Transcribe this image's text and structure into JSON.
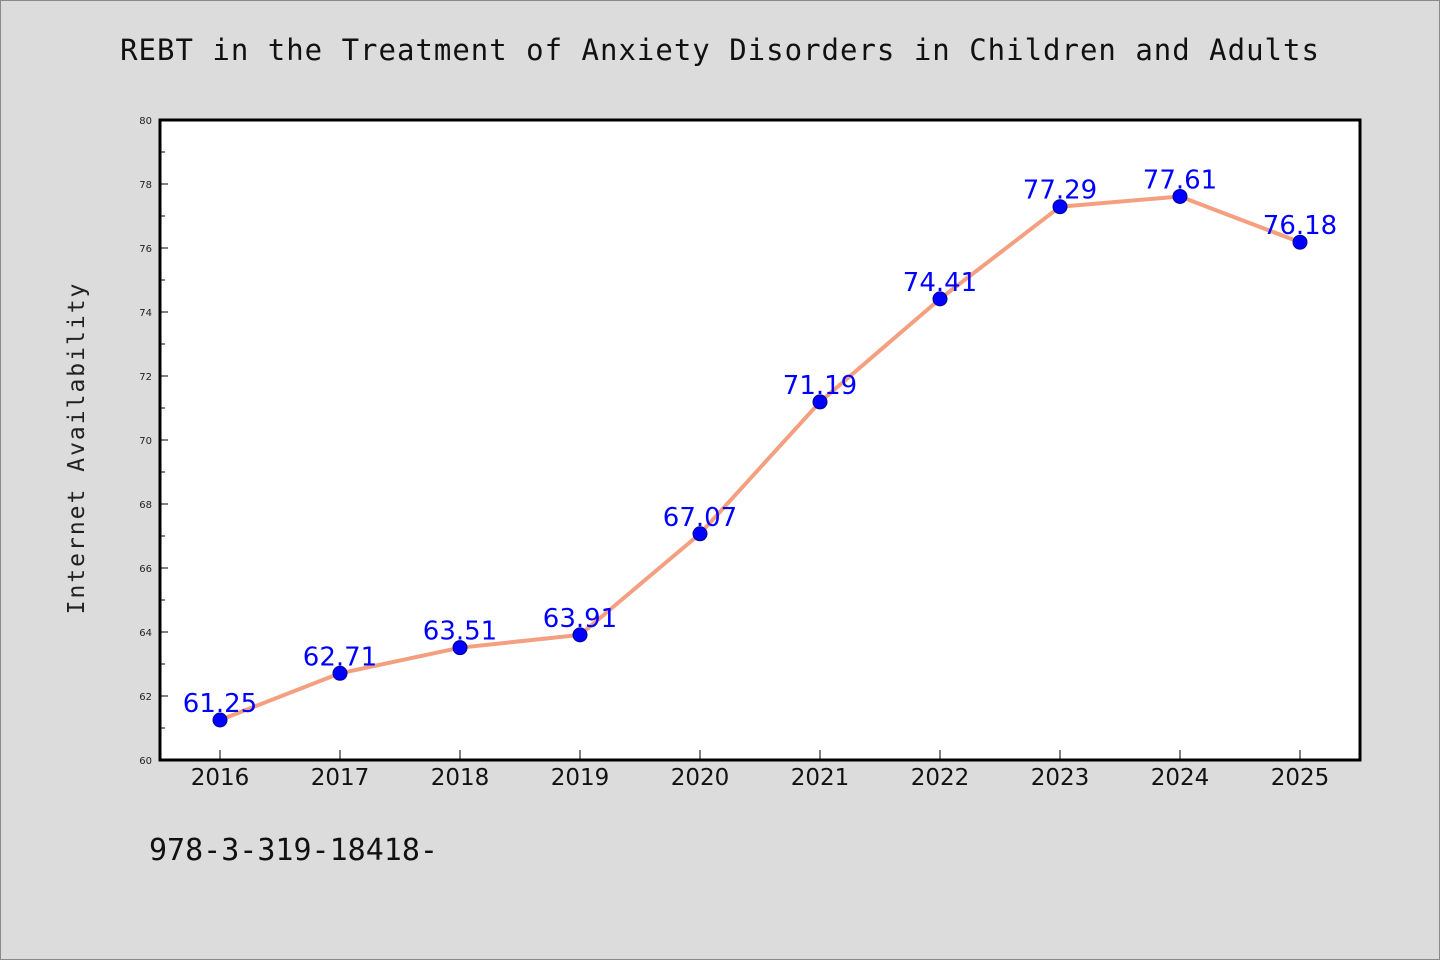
{
  "page": {
    "title": "REBT in the Treatment of Anxiety Disorders in Children and Adults",
    "footer_code": "978-3-319-18418-"
  },
  "colors": {
    "background": "#dcdcdc",
    "plot_background": "#ffffff",
    "line": "#f4a080",
    "marker": "#0000ff",
    "label": "#0000ff"
  },
  "chart_data": {
    "type": "line",
    "title": "REBT in the Treatment of Anxiety Disorders in Children and Adults",
    "xlabel": "",
    "ylabel": "Internet Availability",
    "categories": [
      "2016",
      "2017",
      "2018",
      "2019",
      "2020",
      "2021",
      "2022",
      "2023",
      "2024",
      "2025"
    ],
    "series": [
      {
        "values": [
          61.25,
          62.71,
          63.51,
          63.91,
          67.07,
          71.19,
          74.41,
          77.29,
          77.61,
          76.18
        ],
        "labels": [
          "61.25",
          "62.71",
          "63.51",
          "63.91",
          "67.07",
          "71.19",
          "74.41",
          "77.29",
          "77.61",
          "76.18"
        ]
      }
    ],
    "ylim": [
      60,
      80
    ],
    "yticks": [
      "60",
      "62",
      "64",
      "66",
      "68",
      "70",
      "72",
      "74",
      "76",
      "78",
      "80"
    ],
    "grid": false,
    "legend": "none"
  }
}
